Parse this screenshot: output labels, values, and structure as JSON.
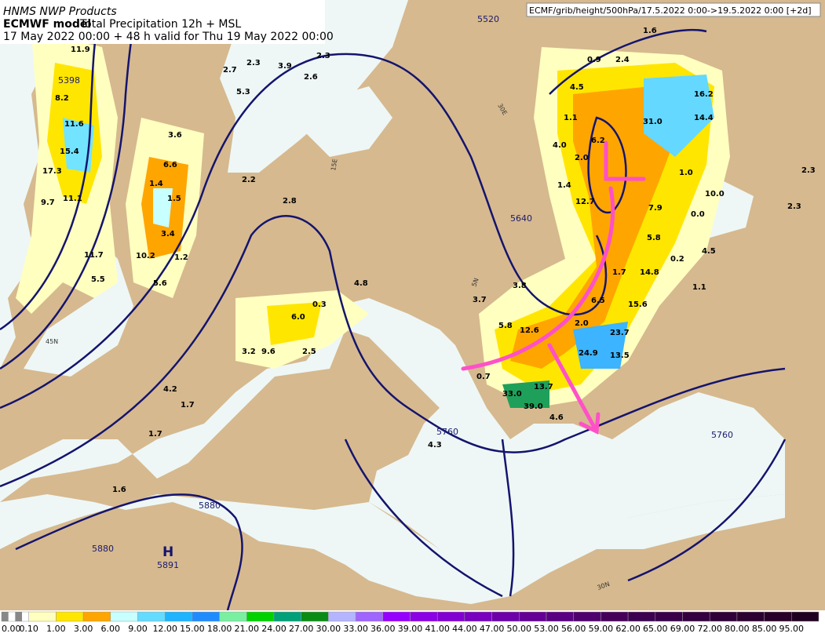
{
  "header": {
    "product": "HNMS NWP Products",
    "model": "ECMWF model",
    "field": "Total Precipitation 12h + MSL",
    "valid": "17 May 2022 00:00 + 48 h valid for Thu 19 May 2022 00:00"
  },
  "source": "ECMF/grib/height/500hPa/17.5.2022 0:00->19.5.2022 0:00 [+2d]",
  "contour_labels": [
    "5520",
    "5398",
    "5640",
    "5760",
    "5760",
    "5880",
    "5880"
  ],
  "pressure_center": {
    "label": "H",
    "value": "5891"
  },
  "grid_labels": [
    "30E",
    "15E",
    "45N",
    "30N",
    "5N"
  ],
  "precip_labels": [
    "11.9",
    "8.2",
    "11.6",
    "15.4",
    "17.3",
    "11.1",
    "9.7",
    "3.6",
    "6.6",
    "1.4",
    "1.5",
    "3.4",
    "10.2",
    "1.2",
    "11.7",
    "5.5",
    "5.6",
    "2.3",
    "3.9",
    "2.3",
    "2.6",
    "5.3",
    "2.7",
    "2.2",
    "2.8",
    "4.8",
    "0.3",
    "6.0",
    "3.2",
    "9.6",
    "2.5",
    "4.2",
    "1.7",
    "1.7",
    "1.6",
    "4.3",
    "0.9",
    "2.4",
    "1.6",
    "4.5",
    "1.1",
    "4.0",
    "2.0",
    "6.2",
    "1.4",
    "12.7",
    "31.0",
    "16.2",
    "14.4",
    "1.0",
    "10.0",
    "7.9",
    "0.0",
    "5.8",
    "0.2",
    "4.5",
    "2.3",
    "2.3",
    "1.7",
    "14.8",
    "1.1",
    "6.5",
    "15.6",
    "3.8",
    "3.7",
    "5.8",
    "12.6",
    "2.0",
    "23.7",
    "24.9",
    "13.5",
    "0.7",
    "13.7",
    "33.0",
    "39.0",
    "4.6"
  ],
  "colorbar": [
    "0.00",
    "0.10",
    "1.00",
    "3.00",
    "6.00",
    "9.00",
    "12.00",
    "15.00",
    "18.00",
    "21.00",
    "24.00",
    "27.00",
    "30.00",
    "33.00",
    "36.00",
    "39.00",
    "41.00",
    "44.00",
    "47.00",
    "50.00",
    "53.00",
    "56.00",
    "59.00",
    "62.00",
    "65.00",
    "69.00",
    "72.00",
    "80.00",
    "85.00",
    "95.00"
  ]
}
